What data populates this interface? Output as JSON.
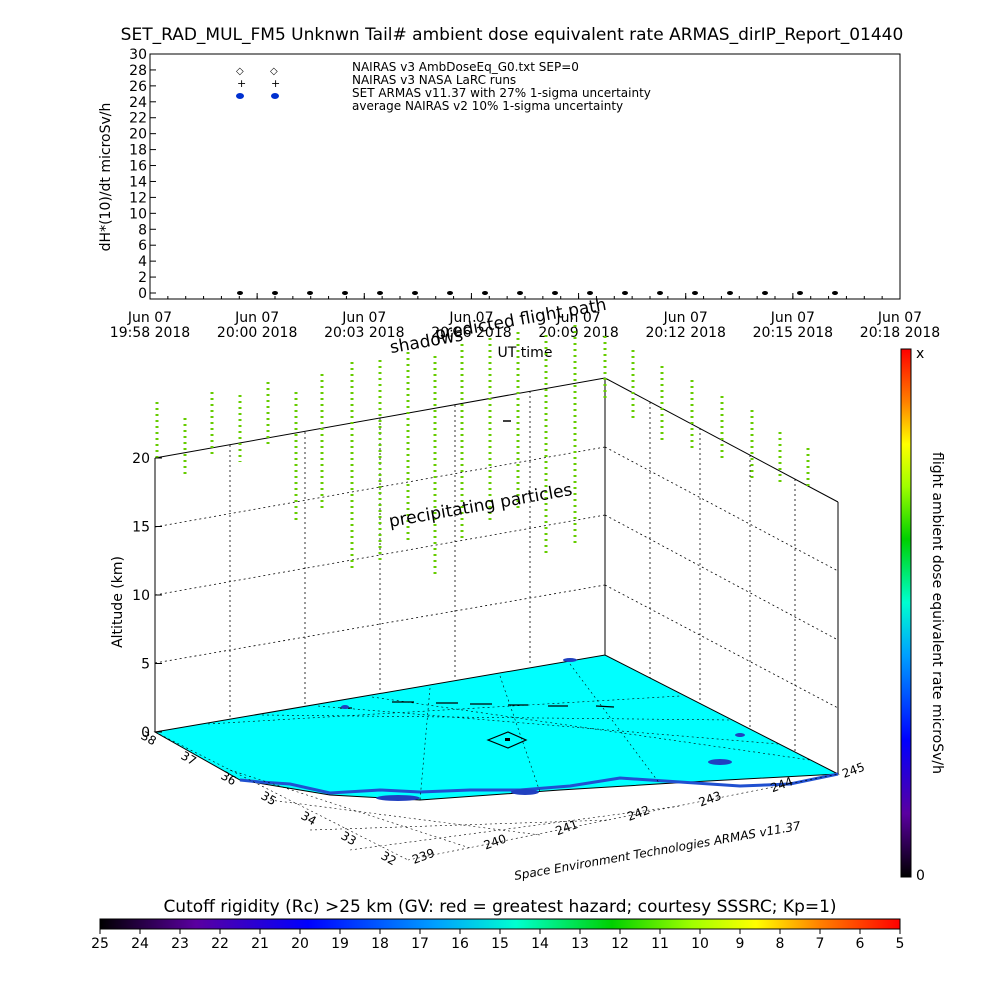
{
  "chart_data": [
    {
      "type": "scatter",
      "title": "SET_RAD_MUL_FM5 Unknwn Tail#  ambient dose equivalent rate ARMAS_dirIP_Report_01440",
      "ylabel": "dH*(10)/dt microSv/h",
      "xlabel": "UT time",
      "ylim": [
        0,
        30
      ],
      "yticks": [
        0,
        2,
        4,
        6,
        8,
        10,
        12,
        14,
        16,
        18,
        20,
        22,
        24,
        26,
        28,
        30
      ],
      "xticks": [
        {
          "top": "Jun 07",
          "bottom": "19:58  2018"
        },
        {
          "top": "Jun 07",
          "bottom": "20:00  2018"
        },
        {
          "top": "Jun 07",
          "bottom": "20:03  2018"
        },
        {
          "top": "Jun 07",
          "bottom": "20:06  2018"
        },
        {
          "top": "Jun 07",
          "bottom": "20:09  2018"
        },
        {
          "top": "Jun 07",
          "bottom": "20:12  2018"
        },
        {
          "top": "Jun 07",
          "bottom": "20:15  2018"
        },
        {
          "top": "Jun 07",
          "bottom": "20:18  2018"
        }
      ],
      "legend": [
        "NAIRAS v3 AmbDoseEq_G0.txt SEP=0",
        "NAIRAS v3 NASA LaRC runs",
        "SET ARMAS v11.37 with 27% 1-sigma uncertainty",
        "average NAIRAS v2 10% 1-sigma uncertainty"
      ],
      "legend_placement": "top-left",
      "series_values_y": [
        0,
        0,
        0,
        0,
        0,
        0,
        0,
        0,
        0,
        0,
        0,
        0,
        0,
        0,
        0,
        0,
        0,
        0
      ]
    },
    {
      "type": "scatter3d",
      "zlabel": "Altitude (km)",
      "zticks": [
        0,
        5,
        10,
        15,
        20
      ],
      "lon_ticks": [
        "239",
        "240",
        "241",
        "242",
        "243",
        "244",
        "245"
      ],
      "lat_ticks": [
        "32",
        "33",
        "34",
        "35",
        "36",
        "37",
        "38"
      ],
      "annotations": [
        "predicted flight path",
        "shadows",
        "precipitating particles"
      ],
      "colorbar": {
        "label": "flight ambient dose equivalent rate microSv/h",
        "top_label": "x",
        "bottom_label": "0"
      },
      "footer": "Space Environment Technologies ARMAS v11.37"
    },
    {
      "type": "colorbar",
      "title": "Cutoff rigidity (Rc) >25 km (GV: red = greatest hazard; courtesy SSSRC; Kp=1)",
      "ticks": [
        "25",
        "24",
        "23",
        "22",
        "21",
        "20",
        "19",
        "18",
        "17",
        "16",
        "15",
        "14",
        "13",
        "12",
        "11",
        "10",
        "9",
        "8",
        "7",
        "6",
        "5"
      ]
    }
  ]
}
